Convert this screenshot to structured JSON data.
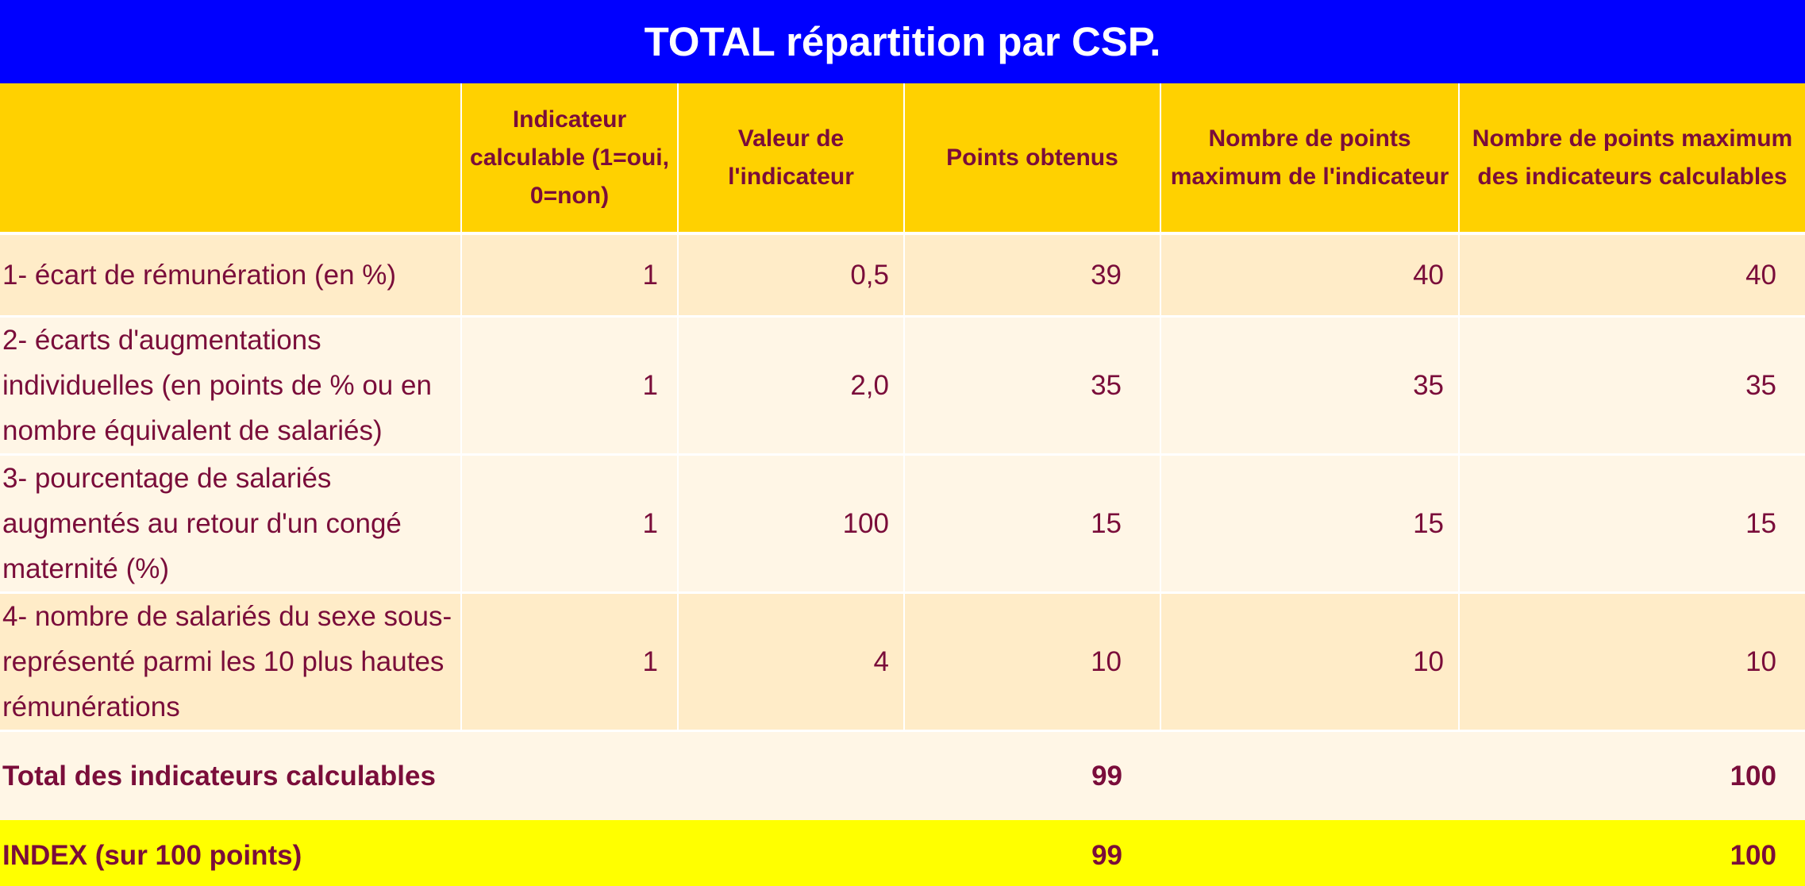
{
  "title": "TOTAL répartition par CSP.",
  "headers": [
    "",
    "Indicateur calculable (1=oui, 0=non)",
    "Valeur de l'indicateur",
    "Points obtenus",
    "Nombre de points maximum de l'indicateur",
    "Nombre de points maximum des indicateurs calculables"
  ],
  "rows": [
    {
      "label": "1- écart de rémunération (en %)",
      "calculable": "1",
      "valeur": "0,5",
      "points": "39",
      "max_indicateur": "40",
      "max_calculables": "40"
    },
    {
      "label": "2- écarts d'augmentations individuelles (en points de % ou en nombre équivalent de salariés)",
      "calculable": "1",
      "valeur": "2,0",
      "points": "35",
      "max_indicateur": "35",
      "max_calculables": "35"
    },
    {
      "label": "3- pourcentage de salariés augmentés au retour d'un congé maternité (%)",
      "calculable": "1",
      "valeur": "100",
      "points": "15",
      "max_indicateur": "15",
      "max_calculables": "15"
    },
    {
      "label": "4- nombre de salariés du sexe sous-représenté parmi les 10 plus hautes rémunérations",
      "calculable": "1",
      "valeur": "4",
      "points": "10",
      "max_indicateur": "10",
      "max_calculables": "10"
    }
  ],
  "total": {
    "label": "Total des indicateurs calculables",
    "points": "99",
    "max_calculables": "100"
  },
  "index": {
    "label": "INDEX (sur 100 points)",
    "points": "99",
    "max_calculables": "100"
  },
  "colors": {
    "title_bg": "#0000ff",
    "header_bg": "#ffd100",
    "row_dark": "#ffecc8",
    "row_light": "#fff6e6",
    "index_bg": "#ffff00",
    "text": "#7a0d3a"
  }
}
